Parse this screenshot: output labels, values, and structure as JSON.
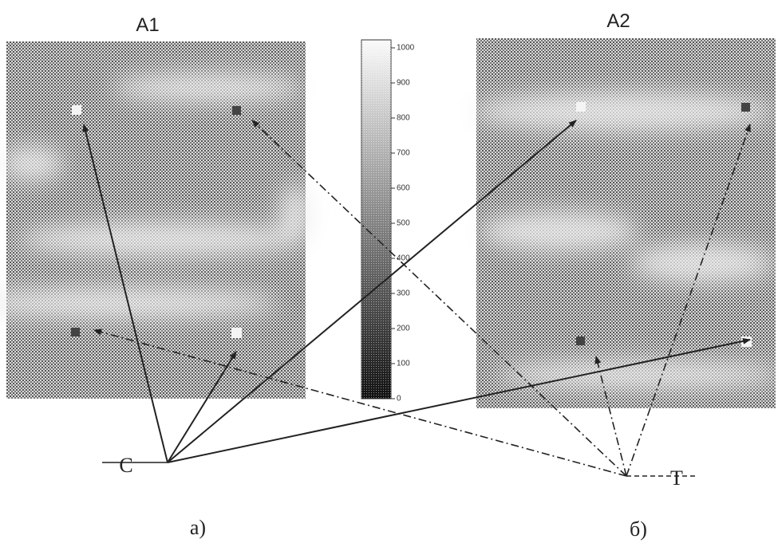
{
  "panels": [
    {
      "label": "A1"
    },
    {
      "label": "A2"
    }
  ],
  "colorbar": {
    "lim": [
      0,
      1000
    ],
    "ticks": [
      0,
      100,
      200,
      300,
      400,
      500,
      600,
      700,
      800,
      900,
      1000
    ]
  },
  "origins": [
    {
      "label": "C"
    },
    {
      "label": "T"
    }
  ],
  "captions": [
    "а)",
    "б)"
  ]
}
